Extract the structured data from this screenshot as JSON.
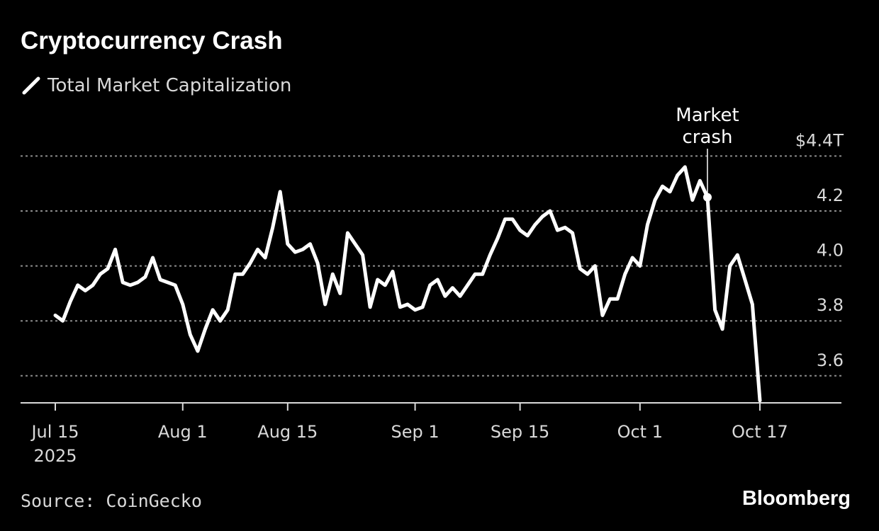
{
  "title": "Cryptocurrency Crash",
  "source": "Source: CoinGecko",
  "brand": "Bloomberg",
  "colors": {
    "background": "#000000",
    "line": "#ffffff",
    "grid": "#8c8c8c",
    "text": "#d9d9d9"
  },
  "chart_data": {
    "type": "line",
    "title": "Cryptocurrency Crash",
    "xlabel": "",
    "ylabel": "",
    "grid": true,
    "legend": "top-left",
    "ylim": [
      3.5,
      4.4
    ],
    "yticks": [
      3.6,
      3.8,
      4.0,
      4.2,
      4.4
    ],
    "ytick_labels": [
      "3.6",
      "3.8",
      "4.0",
      "4.2",
      "$4.4T"
    ],
    "xticks": [
      "2025-07-15",
      "2025-08-01",
      "2025-08-15",
      "2025-09-01",
      "2025-09-15",
      "2025-10-01",
      "2025-10-17"
    ],
    "xtick_labels": [
      "Jul 15\n2025",
      "Aug 1",
      "Aug 15",
      "Sep 1",
      "Sep 15",
      "Oct 1",
      "Oct 17"
    ],
    "series": [
      {
        "name": "Total Market Capitalization",
        "x": [
          "2025-07-15",
          "2025-07-16",
          "2025-07-17",
          "2025-07-18",
          "2025-07-19",
          "2025-07-20",
          "2025-07-21",
          "2025-07-22",
          "2025-07-23",
          "2025-07-24",
          "2025-07-25",
          "2025-07-26",
          "2025-07-27",
          "2025-07-28",
          "2025-07-29",
          "2025-07-30",
          "2025-07-31",
          "2025-08-01",
          "2025-08-02",
          "2025-08-03",
          "2025-08-04",
          "2025-08-05",
          "2025-08-06",
          "2025-08-07",
          "2025-08-08",
          "2025-08-09",
          "2025-08-10",
          "2025-08-11",
          "2025-08-12",
          "2025-08-13",
          "2025-08-14",
          "2025-08-15",
          "2025-08-16",
          "2025-08-17",
          "2025-08-18",
          "2025-08-19",
          "2025-08-20",
          "2025-08-21",
          "2025-08-22",
          "2025-08-23",
          "2025-08-24",
          "2025-08-25",
          "2025-08-26",
          "2025-08-27",
          "2025-08-28",
          "2025-08-29",
          "2025-08-30",
          "2025-08-31",
          "2025-09-01",
          "2025-09-02",
          "2025-09-03",
          "2025-09-04",
          "2025-09-05",
          "2025-09-06",
          "2025-09-07",
          "2025-09-08",
          "2025-09-09",
          "2025-09-10",
          "2025-09-11",
          "2025-09-12",
          "2025-09-13",
          "2025-09-14",
          "2025-09-15",
          "2025-09-16",
          "2025-09-17",
          "2025-09-18",
          "2025-09-19",
          "2025-09-20",
          "2025-09-21",
          "2025-09-22",
          "2025-09-23",
          "2025-09-24",
          "2025-09-25",
          "2025-09-26",
          "2025-09-27",
          "2025-09-28",
          "2025-09-29",
          "2025-09-30",
          "2025-10-01",
          "2025-10-02",
          "2025-10-03",
          "2025-10-04",
          "2025-10-05",
          "2025-10-06",
          "2025-10-07",
          "2025-10-08",
          "2025-10-09",
          "2025-10-10",
          "2025-10-11",
          "2025-10-12",
          "2025-10-13",
          "2025-10-14",
          "2025-10-15",
          "2025-10-16",
          "2025-10-17"
        ],
        "y": [
          3.82,
          3.8,
          3.87,
          3.93,
          3.91,
          3.93,
          3.97,
          3.99,
          4.06,
          3.94,
          3.93,
          3.94,
          3.96,
          4.03,
          3.95,
          3.94,
          3.93,
          3.86,
          3.75,
          3.69,
          3.77,
          3.84,
          3.8,
          3.84,
          3.97,
          3.97,
          4.01,
          4.06,
          4.03,
          4.14,
          4.27,
          4.08,
          4.05,
          4.06,
          4.08,
          4.01,
          3.86,
          3.97,
          3.9,
          4.12,
          4.08,
          4.04,
          3.85,
          3.95,
          3.93,
          3.98,
          3.85,
          3.86,
          3.84,
          3.85,
          3.93,
          3.95,
          3.89,
          3.92,
          3.89,
          3.93,
          3.97,
          3.97,
          4.04,
          4.1,
          4.17,
          4.17,
          4.13,
          4.11,
          4.15,
          4.18,
          4.2,
          4.13,
          4.14,
          4.12,
          3.99,
          3.97,
          4.0,
          3.82,
          3.88,
          3.88,
          3.97,
          4.03,
          4.0,
          4.15,
          4.24,
          4.29,
          4.27,
          4.33,
          4.36,
          4.24,
          4.31,
          4.25,
          3.84,
          3.77,
          4.0,
          4.04,
          3.95,
          3.86,
          3.51
        ]
      }
    ],
    "annotations": [
      {
        "text": "Market\ncrash",
        "x": "2025-10-10",
        "y": 4.25
      }
    ]
  }
}
